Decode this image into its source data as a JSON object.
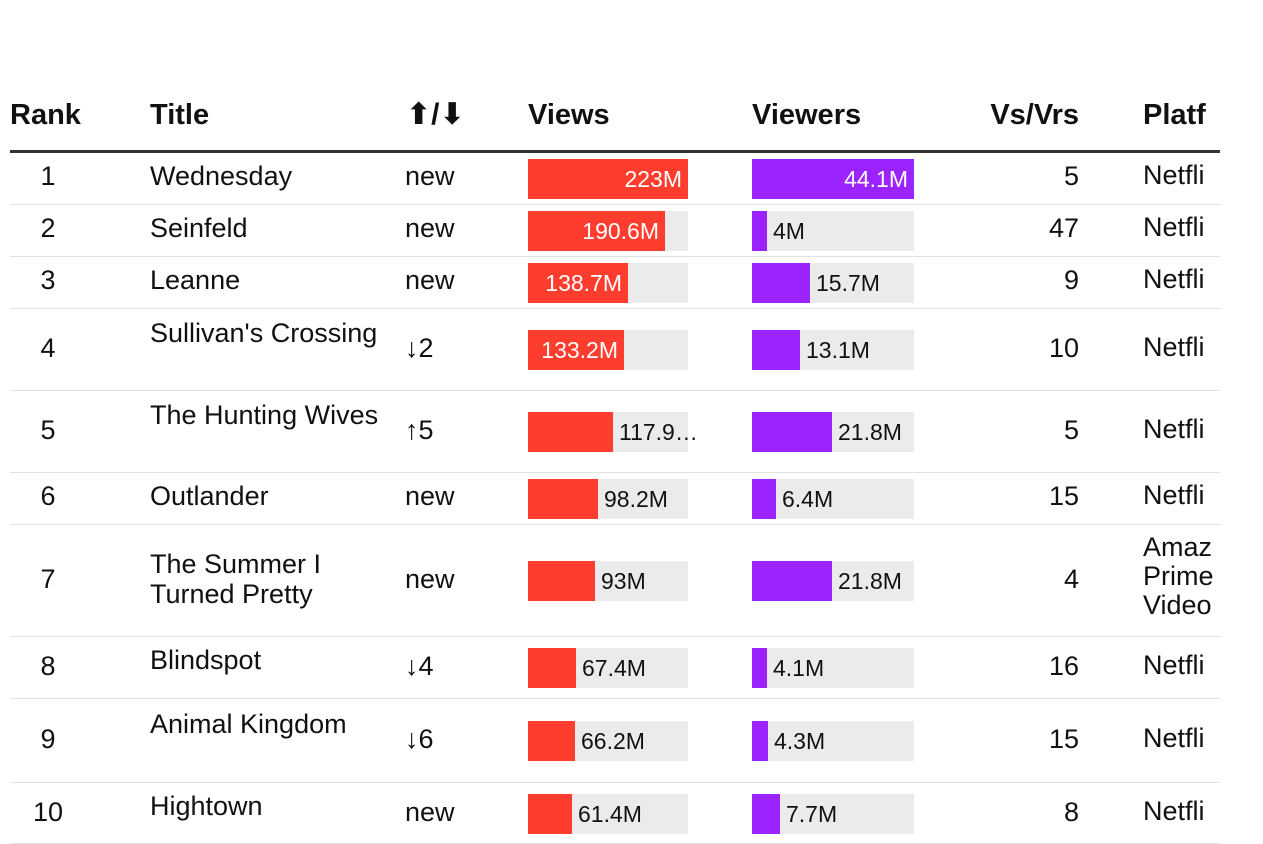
{
  "chart_data": {
    "type": "table",
    "title": "",
    "columns": [
      "Rank",
      "Title",
      "⬆/⬇",
      "Views",
      "Viewers",
      "Vs/Vrs",
      "Platf"
    ],
    "views_max": 223,
    "viewers_max": 44.1,
    "colors": {
      "views": "#ff3d2e",
      "viewers": "#9a23ff",
      "track": "#ebebeb"
    },
    "rows": [
      {
        "rank": "1",
        "title": "Wednesday",
        "change": "new",
        "views": 223,
        "views_label": "223M",
        "viewers": 44.1,
        "viewers_label": "44.1M",
        "vs_vrs": "5",
        "platform": "Netfli"
      },
      {
        "rank": "2",
        "title": "Seinfeld",
        "change": "new",
        "views": 190.6,
        "views_label": "190.6M",
        "viewers": 4,
        "viewers_label": "4M",
        "vs_vrs": "47",
        "platform": "Netfli"
      },
      {
        "rank": "3",
        "title": "Leanne",
        "change": "new",
        "views": 138.7,
        "views_label": "138.7M",
        "viewers": 15.7,
        "viewers_label": "15.7M",
        "vs_vrs": "9",
        "platform": "Netfli"
      },
      {
        "rank": "4",
        "title": "Sullivan's Crossing",
        "change": "↓2",
        "views": 133.2,
        "views_label": "133.2M",
        "viewers": 13.1,
        "viewers_label": "13.1M",
        "vs_vrs": "10",
        "platform": "Netfli"
      },
      {
        "rank": "5",
        "title": "The Hunting Wives",
        "change": "↑5",
        "views": 117.9,
        "views_label": "117.9…",
        "viewers": 21.8,
        "viewers_label": "21.8M",
        "vs_vrs": "5",
        "platform": "Netfli"
      },
      {
        "rank": "6",
        "title": "Outlander",
        "change": "new",
        "views": 98.2,
        "views_label": "98.2M",
        "viewers": 6.4,
        "viewers_label": "6.4M",
        "vs_vrs": "15",
        "platform": "Netfli"
      },
      {
        "rank": "7",
        "title": "The Summer I Turned Pretty",
        "change": "new",
        "views": 93,
        "views_label": "93M",
        "viewers": 21.8,
        "viewers_label": "21.8M",
        "vs_vrs": "4",
        "platform": "Amaz Prime Video"
      },
      {
        "rank": "8",
        "title": "Blindspot",
        "change": "↓4",
        "views": 67.4,
        "views_label": "67.4M",
        "viewers": 4.1,
        "viewers_label": "4.1M",
        "vs_vrs": "16",
        "platform": "Netfli"
      },
      {
        "rank": "9",
        "title": "Animal Kingdom",
        "change": "↓6",
        "views": 66.2,
        "views_label": "66.2M",
        "viewers": 4.3,
        "viewers_label": "4.3M",
        "vs_vrs": "15",
        "platform": "Netfli"
      },
      {
        "rank": "10",
        "title": "Hightown",
        "change": "new",
        "views": 61.4,
        "views_label": "61.4M",
        "viewers": 7.7,
        "viewers_label": "7.7M",
        "vs_vrs": "8",
        "platform": "Netfli"
      }
    ]
  }
}
